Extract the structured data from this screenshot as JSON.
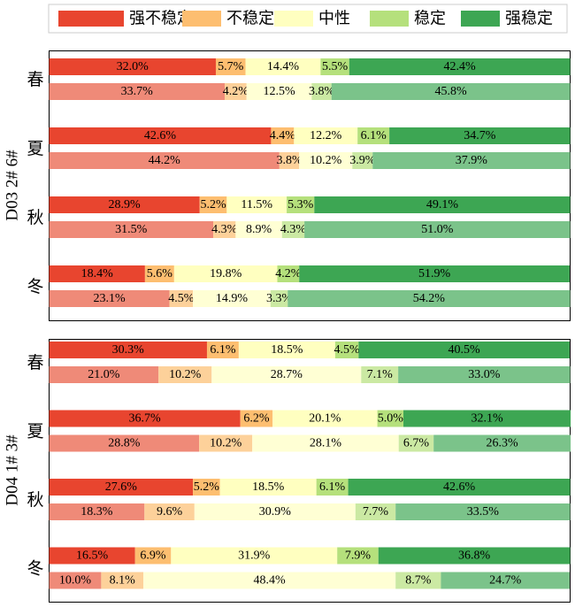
{
  "chart_data": [
    {
      "type": "stacked-bar-horizontal",
      "ylabel": "D03 2# 6#",
      "legend": "top",
      "xlim": [
        0,
        100
      ],
      "categories": [
        "春",
        null,
        "夏",
        null,
        "秋",
        null,
        "冬",
        null
      ],
      "series": [
        {
          "name": "强不稳定",
          "color": "#e8452f",
          "alt_color": "#ef8a78",
          "values": [
            32.0,
            33.7,
            42.6,
            44.2,
            28.9,
            31.5,
            18.4,
            23.1
          ],
          "value_labels": [
            "32.0%",
            "33.7%",
            "42.6%",
            "44.2%",
            "28.9%",
            "31.5%",
            "18.4%",
            "23.1%"
          ]
        },
        {
          "name": "不稳定",
          "color": "#fdbe70",
          "alt_color": "#fdd19a",
          "values": [
            5.7,
            4.2,
            4.4,
            3.8,
            5.2,
            4.3,
            5.6,
            4.5
          ],
          "value_labels": [
            "5.7%",
            "4.2%",
            "4.4%",
            "3.8%",
            "5.2%",
            "4.3%",
            "5.6%",
            "4.5%"
          ]
        },
        {
          "name": "中性",
          "color": "#ffffc0",
          "alt_color": "#ffffd4",
          "values": [
            14.4,
            12.5,
            12.2,
            10.2,
            11.5,
            8.9,
            19.8,
            14.9
          ],
          "value_labels": [
            "14.4%",
            "12.5%",
            "12.2%",
            "10.2%",
            "11.5%",
            "8.9%",
            "19.8%",
            "14.9%"
          ]
        },
        {
          "name": "稳定",
          "color": "#b5e07c",
          "alt_color": "#cbe9a3",
          "values": [
            5.5,
            3.8,
            6.1,
            3.9,
            5.3,
            4.3,
            4.2,
            3.3
          ],
          "value_labels": [
            "5.5%",
            "3.8%",
            "6.1%",
            "3.9%",
            "5.3%",
            "4.3%",
            "4.2%",
            "3.3%"
          ]
        },
        {
          "name": "强稳定",
          "color": "#3da653",
          "alt_color": "#7bc38a",
          "values": [
            42.4,
            45.8,
            34.7,
            37.9,
            49.1,
            51.0,
            51.9,
            54.2
          ],
          "value_labels": [
            "42.4%",
            "45.8%",
            "34.7%",
            "37.9%",
            "49.1%",
            "51.0%",
            "51.9%",
            "54.2%"
          ]
        }
      ]
    },
    {
      "type": "stacked-bar-horizontal",
      "ylabel": "D04 1# 3#",
      "xlim": [
        0,
        100
      ],
      "categories": [
        "春",
        null,
        "夏",
        null,
        "秋",
        null,
        "冬",
        null
      ],
      "series": [
        {
          "name": "强不稳定",
          "color": "#e8452f",
          "alt_color": "#ef8a78",
          "values": [
            30.3,
            21.0,
            36.7,
            28.8,
            27.6,
            18.3,
            16.5,
            10.0
          ],
          "value_labels": [
            "30.3%",
            "21.0%",
            "36.7%",
            "28.8%",
            "27.6%",
            "18.3%",
            "16.5%",
            "10.0%"
          ]
        },
        {
          "name": "不稳定",
          "color": "#fdbe70",
          "alt_color": "#fdd19a",
          "values": [
            6.1,
            10.2,
            6.2,
            10.2,
            5.2,
            9.6,
            6.9,
            8.1
          ],
          "value_labels": [
            "6.1%",
            "10.2%",
            "6.2%",
            "10.2%",
            "5.2%",
            "9.6%",
            "6.9%",
            "8.1%"
          ]
        },
        {
          "name": "中性",
          "color": "#ffffc0",
          "alt_color": "#ffffd4",
          "values": [
            18.5,
            28.7,
            20.1,
            28.1,
            18.5,
            30.9,
            31.9,
            48.4
          ],
          "value_labels": [
            "18.5%",
            "28.7%",
            "20.1%",
            "28.1%",
            "18.5%",
            "30.9%",
            "31.9%",
            "48.4%"
          ]
        },
        {
          "name": "稳定",
          "color": "#b5e07c",
          "alt_color": "#cbe9a3",
          "values": [
            4.5,
            7.1,
            5.0,
            6.7,
            6.1,
            7.7,
            7.9,
            8.7
          ],
          "value_labels": [
            "4.5%",
            "7.1%",
            "5.0%",
            "6.7%",
            "6.1%",
            "7.7%",
            "7.9%",
            "8.7%"
          ]
        },
        {
          "name": "强稳定",
          "color": "#3da653",
          "alt_color": "#7bc38a",
          "values": [
            40.5,
            33.0,
            32.1,
            26.3,
            42.6,
            33.5,
            36.8,
            24.7
          ],
          "value_labels": [
            "40.5%",
            "33.0%",
            "32.1%",
            "26.3%",
            "42.6%",
            "33.5%",
            "36.8%",
            "24.7%"
          ]
        }
      ]
    }
  ]
}
